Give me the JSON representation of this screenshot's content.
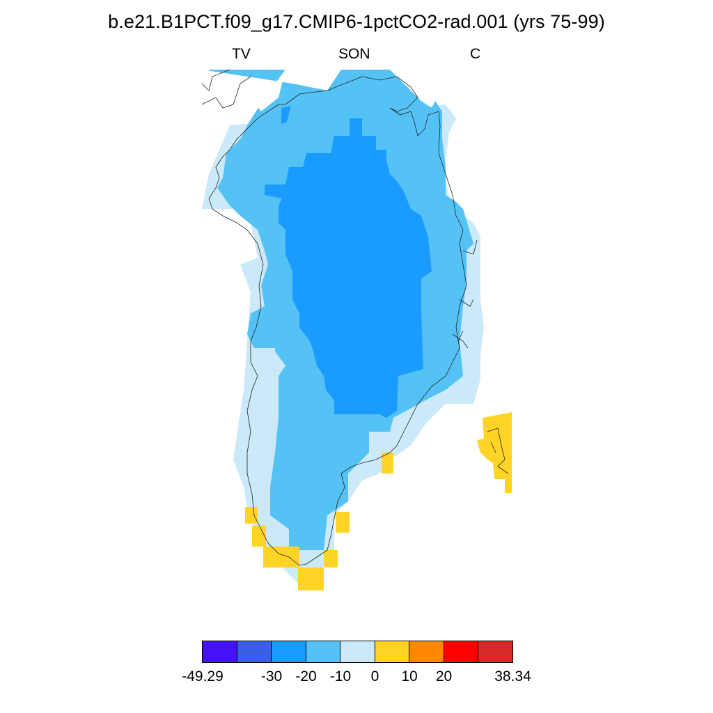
{
  "title": "b.e21.B1PCT.f09_g17.CMIP6-1pctCO2-rad.001 (yrs 75-99)",
  "subtitle_left": "TV",
  "subtitle_center": "SON",
  "subtitle_right": "C",
  "colorbar": {
    "colors": [
      "#4412f7",
      "#3a5fe6",
      "#1a9bff",
      "#55c2f5",
      "#cbe9f8",
      "#ffd426",
      "#ff8800",
      "#ff0000",
      "#d42a2a"
    ],
    "tick_labels": [
      "-49.29",
      "-30",
      "-20",
      "-10",
      "0",
      "10",
      "20",
      "38.34"
    ],
    "min": -49.29,
    "max": 38.34,
    "levels": [
      -30,
      -20,
      -10,
      0,
      10,
      20
    ]
  },
  "map_data": {
    "region": "Greenland",
    "levels_present": [
      "-30 to -20",
      "-20 to -10",
      "-10 to 0",
      "0 to 10"
    ]
  }
}
